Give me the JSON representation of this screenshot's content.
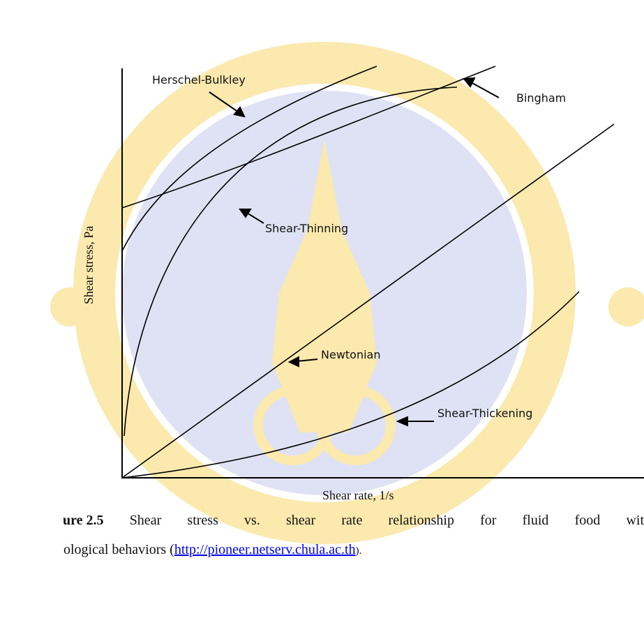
{
  "figure": {
    "y_axis_label": "Shear stress, Pa",
    "x_axis_label": "Shear rate, 1/s",
    "curves": [
      "Herschel-Bulkley",
      "Bingham",
      "Shear-Thinning",
      "Newtonian",
      "Shear-Thickening"
    ]
  },
  "caption": {
    "line1": [
      "ure 2.5",
      "Shear",
      "stress",
      "vs.",
      "shear",
      "rate",
      "relationship",
      "for",
      "fluid",
      "food",
      "wit"
    ],
    "line2_start": "ological behaviors (",
    "link": "http://pioneer.netserv.chula.ac.th",
    "line2_end": ")."
  }
}
